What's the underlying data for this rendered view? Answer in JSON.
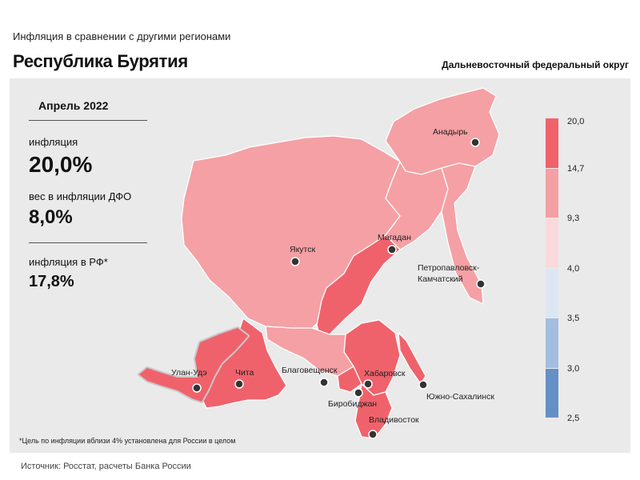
{
  "header": {
    "subtitle": "Инфляция  в сравнении  с другими  регионами",
    "title": "Республика Бурятия",
    "district": "Дальневосточный федеральный округ"
  },
  "stats": {
    "period": "Апрель 2022",
    "inflation_label": "инфляция",
    "inflation_value": "20,0%",
    "weight_label": "вес в инфляции  ДФО",
    "weight_value": "8,0%",
    "rf_label": "инфляция  в РФ*",
    "rf_value": "17,8%"
  },
  "map": {
    "cities": {
      "anadyr": "Анадырь",
      "yakutsk": "Якутск",
      "magadan": "Магадан",
      "petropavlovsk_1": "Петропавловск-",
      "petropavlovsk_2": "Камчатский",
      "ulan_ude": "Улан-Удэ",
      "chita": "Чита",
      "blagoveshchensk": "Благовещенск",
      "khabarovsk": "Хабаровск",
      "birobidzhan": "Биробиджан",
      "vladivostok": "Владивосток",
      "yuzhno": "Южно-Сахалинск"
    },
    "highlighted_region": "Республика Бурятия"
  },
  "legend": {
    "ticks": [
      "20,0",
      "14,7",
      "9,3",
      "4,0",
      "3,5",
      "3,0",
      "2,5"
    ],
    "colors": [
      "#f0626b",
      "#f5a0a4",
      "#fbdadb",
      "#dde6f3",
      "#a3bde0",
      "#6490c6"
    ]
  },
  "footnote": "*Цель по инфляции вблизи 4% установлена для России в целом",
  "source": "Источник: Росстат, расчеты Банка России"
}
